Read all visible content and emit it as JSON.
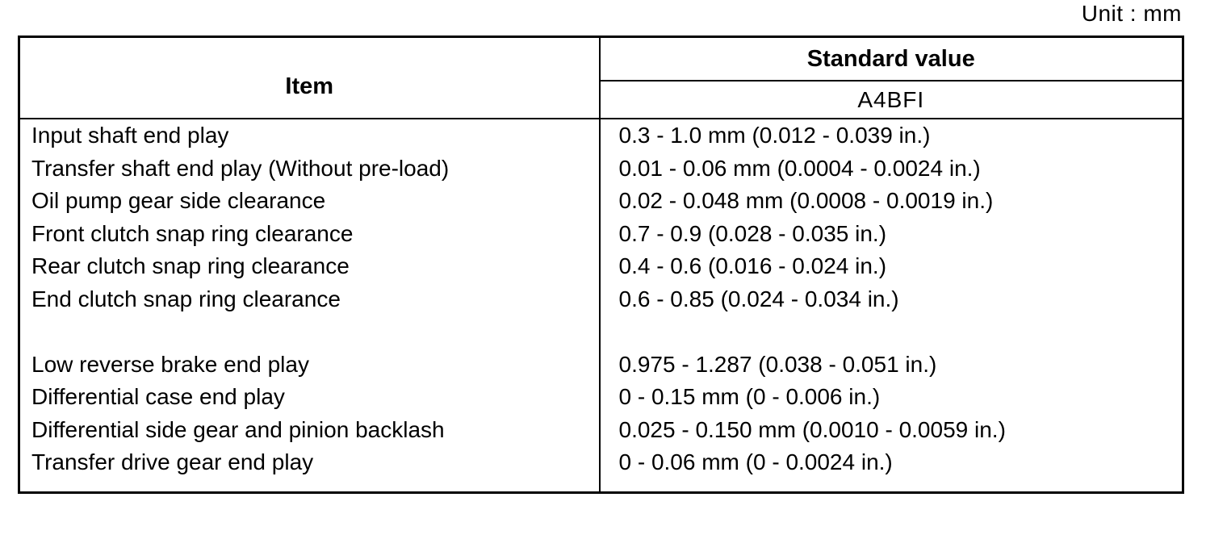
{
  "unit_label": "Unit : mm",
  "colors": {
    "ink": "#000000",
    "paper": "#ffffff",
    "border": "#000000"
  },
  "table": {
    "item_header": "Item",
    "standard_value_header": "Standard value",
    "model_header": "A4BFI",
    "rows": [
      {
        "item": "Input shaft end play",
        "value": "0.3 - 1.0 mm (0.012 - 0.039 in.)"
      },
      {
        "item": "Transfer shaft end play (Without pre-load)",
        "value": "0.01 - 0.06 mm (0.0004 - 0.0024 in.)"
      },
      {
        "item": "Oil pump gear side clearance",
        "value": "0.02 - 0.048 mm (0.0008 - 0.0019 in.)"
      },
      {
        "item": "Front clutch snap ring clearance",
        "value": "0.7 - 0.9 (0.028 - 0.035 in.)"
      },
      {
        "item": "Rear clutch snap ring clearance",
        "value": "0.4 - 0.6 (0.016 - 0.024 in.)"
      },
      {
        "item": "End clutch snap ring clearance",
        "value": "0.6 - 0.85 (0.024 - 0.034 in.)"
      },
      {
        "item": "",
        "value": ""
      },
      {
        "item": "Low reverse brake end play",
        "value": "0.975 - 1.287 (0.038 - 0.051 in.)"
      },
      {
        "item": "Differential case end play",
        "value": "0 - 0.15 mm (0 - 0.006 in.)"
      },
      {
        "item": "Differential side gear and pinion backlash",
        "value": "0.025 - 0.150 mm (0.0010 - 0.0059 in.)"
      },
      {
        "item": "Transfer drive gear end play",
        "value": "0 - 0.06 mm (0 - 0.0024 in.)"
      }
    ]
  }
}
